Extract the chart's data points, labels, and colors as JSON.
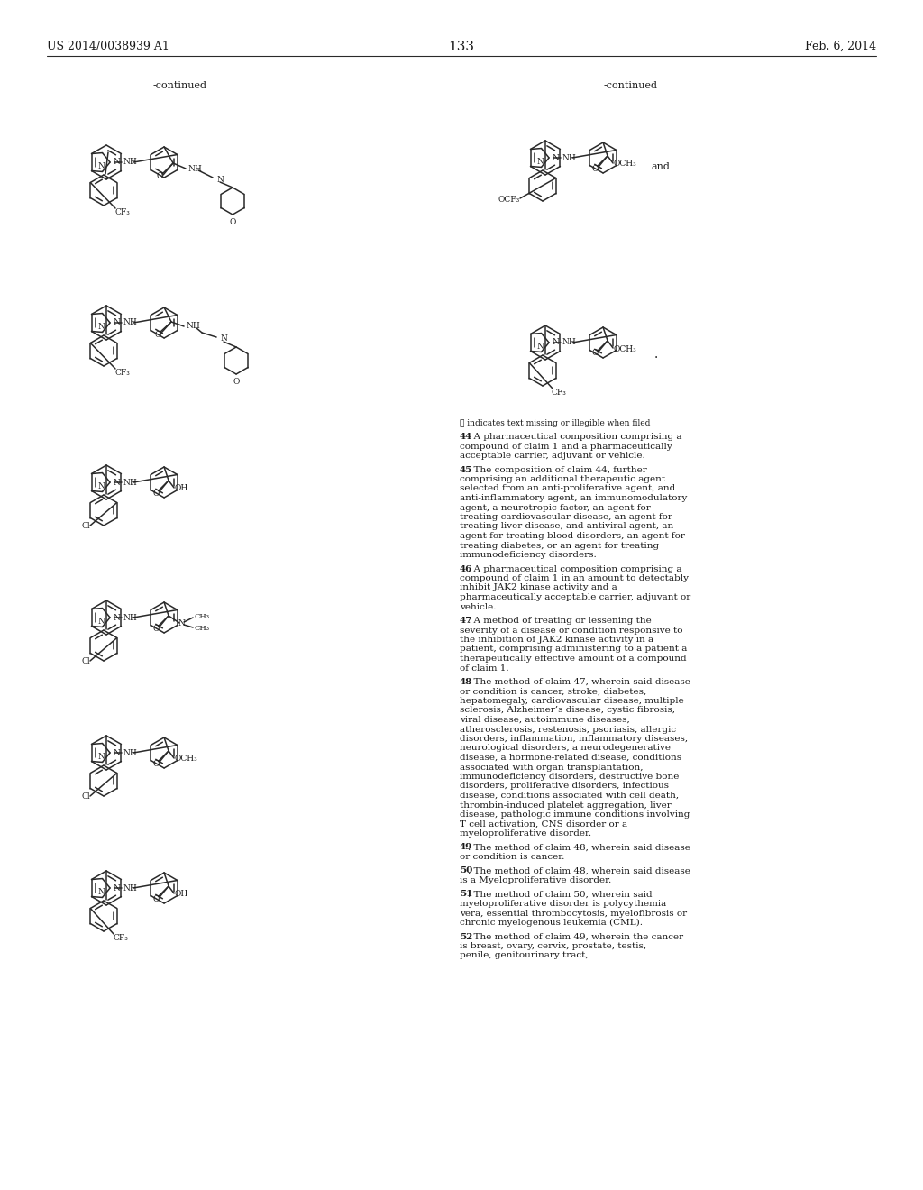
{
  "page_header_left": "US 2014/0038939 A1",
  "page_header_right": "Feb. 6, 2014",
  "page_number": "133",
  "background_color": "#ffffff",
  "text_color": "#1a1a1a",
  "line_color": "#2a2a2a",
  "continued_left": "-continued",
  "continued_right": "-continued",
  "footnote": "Ⓡ indicates text missing or illegible when filed",
  "claims": [
    {
      "num": "44",
      "text": ". A pharmaceutical composition comprising a compound of claim 1 and a pharmaceutically acceptable carrier, adjuvant or vehicle."
    },
    {
      "num": "45",
      "text": ". The composition of claim 44, further comprising an additional therapeutic agent selected from an anti-proliferative agent, and anti-inflammatory agent, an immunomodulatory agent, a neurotropic factor, an agent for treating cardiovascular disease, an agent for treating liver disease, and antiviral agent, an agent for treating blood disorders, an agent for treating diabetes, or an agent for treating immunodeficiency disorders."
    },
    {
      "num": "46",
      "text": ". A pharmaceutical composition comprising a compound of claim 1 in an amount to detectably inhibit JAK2 kinase activity and a pharmaceutically acceptable carrier, adjuvant or vehicle."
    },
    {
      "num": "47",
      "text": ". A method of treating or lessening the severity of a disease or condition responsive to the inhibition of JAK2 kinase activity in a patient, comprising administering to a patient a therapeutically effective amount of a compound of claim 1."
    },
    {
      "num": "48",
      "text": ". The method of claim 47, wherein said disease or condition is cancer, stroke, diabetes, hepatomegaly, cardiovascular disease, multiple sclerosis, Alzheimer’s disease, cystic fibrosis, viral disease, autoimmune diseases, atherosclerosis, restenosis, psoriasis, allergic disorders, inflammation, inflammatory diseases, neurological disorders, a neurodegenerative disease, a hormone-related disease, conditions associated with organ transplantation, immunodeficiency disorders, destructive bone disorders, proliferative disorders, infectious disease, conditions associated with cell death, thrombin-induced platelet aggregation, liver disease, pathologic immune conditions involving T cell activation, CNS disorder or a myeloproliferative disorder."
    },
    {
      "num": "49",
      "text": ". The method of claim 48, wherein said disease or condition is cancer."
    },
    {
      "num": "50",
      "text": ". The method of claim 48, wherein said disease is a Myeloproliferative disorder."
    },
    {
      "num": "51",
      "text": ". The method of claim 50, wherein said myeloproliferative disorder is polycythemia vera, essential thrombocytosis, myelofibrosis or chronic myelogenous leukemia (CML)."
    },
    {
      "num": "52",
      "text": ". The method of claim 49, wherein the cancer is breast, ovary, cervix, prostate, testis, penile, genitourinary tract,"
    }
  ]
}
